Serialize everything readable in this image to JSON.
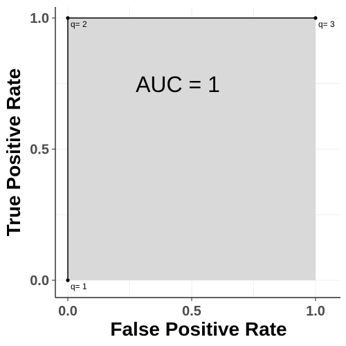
{
  "chart_data": {
    "type": "line",
    "xlabel": "False Positive Rate",
    "ylabel": "True Positive Rate",
    "xlim": [
      0,
      1
    ],
    "ylim": [
      0,
      1
    ],
    "xticks": [
      0.0,
      0.5,
      1.0
    ],
    "yticks": [
      0.0,
      0.5,
      1.0
    ],
    "xtick_labels": [
      "0.0",
      "0.5",
      "1.0"
    ],
    "ytick_labels": [
      "0.0",
      "0.5",
      "1.0"
    ],
    "grid": true,
    "points": [
      {
        "x": 0.0,
        "y": 0.0,
        "label": "q= 1"
      },
      {
        "x": 0.0,
        "y": 1.0,
        "label": "q= 2"
      },
      {
        "x": 1.0,
        "y": 1.0,
        "label": "q= 3"
      }
    ],
    "area_fill_color": "#d9d9d9",
    "line_color": "#000000",
    "annotation": {
      "text": "AUC = 1",
      "x": 0.5,
      "y": 0.75
    }
  }
}
